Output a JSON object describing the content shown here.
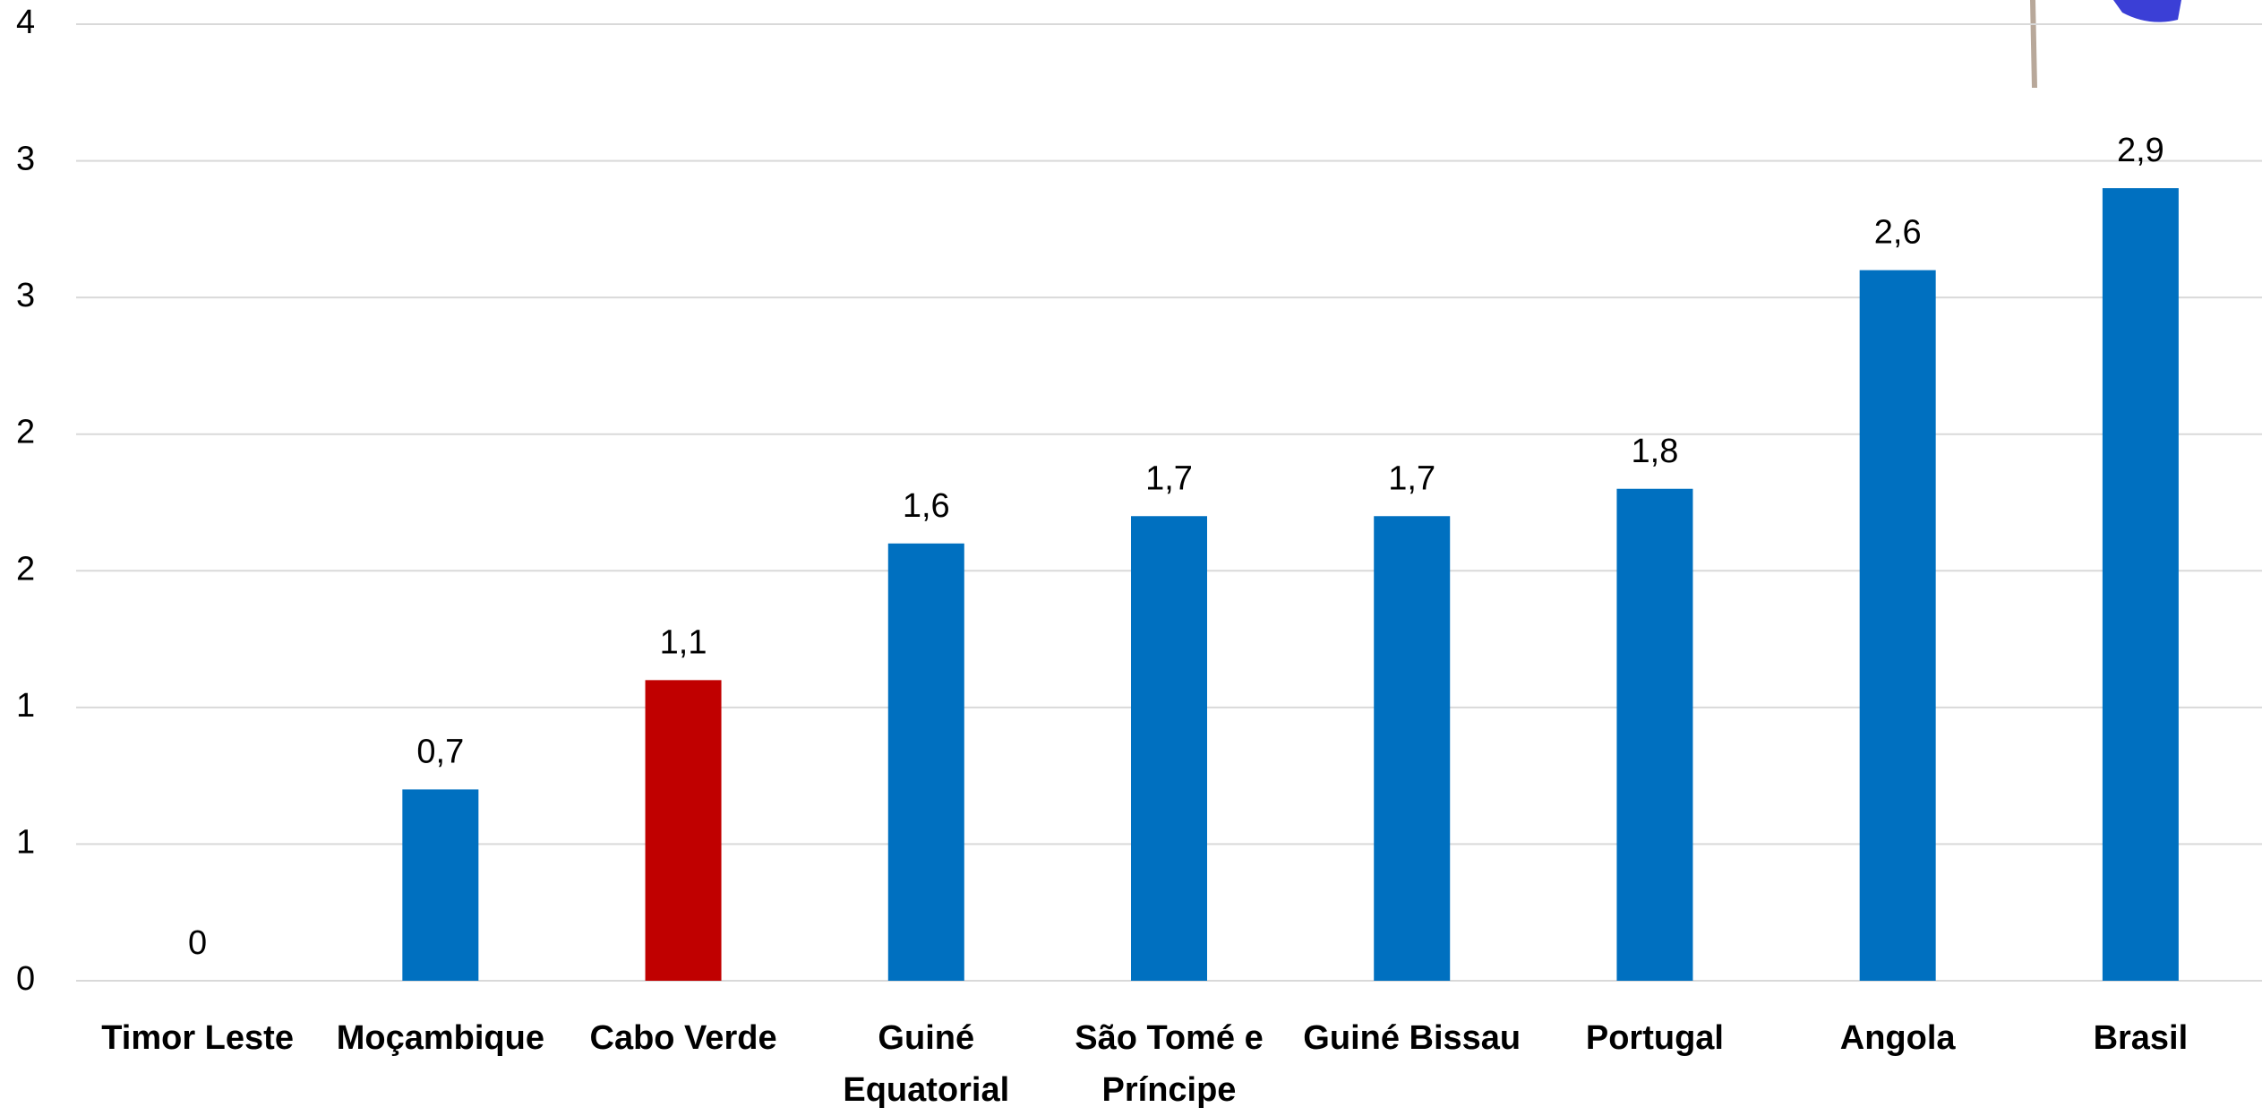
{
  "chart_data": {
    "type": "bar",
    "categories": [
      "Timor Leste",
      "Moçambique",
      "Cabo Verde",
      "Guiné Equatorial",
      "São Tomé e Príncipe",
      "Guiné Bissau",
      "Portugal",
      "Angola",
      "Brasil"
    ],
    "values": [
      0,
      0.7,
      1.1,
      1.6,
      1.7,
      1.7,
      1.8,
      2.6,
      2.9
    ],
    "value_labels": [
      "0",
      "0,7",
      "1,1",
      "1,6",
      "1,7",
      "1,7",
      "1,8",
      "2,6",
      "2,9"
    ],
    "colors": [
      "#0070c0",
      "#0070c0",
      "#c00000",
      "#0070c0",
      "#0070c0",
      "#0070c0",
      "#0070c0",
      "#0070c0",
      "#0070c0"
    ],
    "ylim": [
      0,
      3.5
    ],
    "yticks": [
      0,
      {
        "value": 0.5,
        "label": "1"
      },
      1,
      {
        "value": 1.5,
        "label": "2"
      },
      2,
      {
        "value": 2.5,
        "label": "3"
      },
      3,
      {
        "value": 3.5,
        "label": "4"
      }
    ],
    "grid": true
  }
}
